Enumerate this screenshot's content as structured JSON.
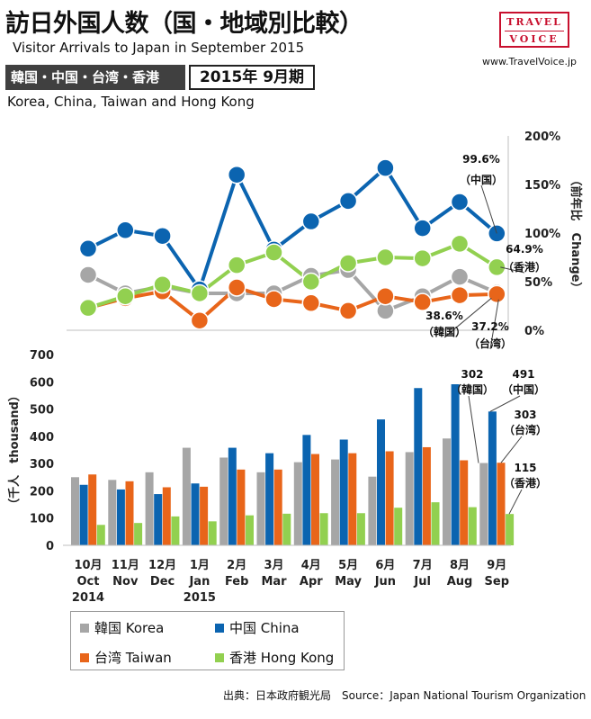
{
  "header": {
    "title": "訪日外国人数（国・地域別比較）",
    "subtitle": "Visitor Arrivals to Japan in September 2015",
    "region_label": "韓国・中国・台湾・香港",
    "period_label": "2015年 9月期",
    "region_en": "Korea, China, Taiwan and Hong Kong"
  },
  "brand": {
    "logo_line1": "TRAVEL",
    "logo_line2": "VOICE",
    "site": "www.TravelVoice.jp",
    "color": "#c8102e"
  },
  "legend": [
    {
      "label": "韓国 Korea",
      "color": "#a6a6a6"
    },
    {
      "label": "中国 China",
      "color": "#0b64b0"
    },
    {
      "label": "台湾 Taiwan",
      "color": "#e8651a"
    },
    {
      "label": "香港 Hong Kong",
      "color": "#92d050"
    }
  ],
  "source": "出典：日本政府観光局　Source：Japan  National Tourism  Organization",
  "chart_data": [
    {
      "type": "line",
      "y_label": "（前年比　Change）",
      "y_ticks": [
        "0%",
        "50%",
        "100%",
        "150%",
        "200%"
      ],
      "ylim": [
        0,
        200
      ],
      "grid": false,
      "series": [
        {
          "name": "韓国 Korea",
          "color": "#a6a6a6",
          "values": [
            57,
            38,
            45,
            38,
            38,
            38,
            56,
            62,
            20,
            35,
            55,
            38.6
          ]
        },
        {
          "name": "中国 China",
          "color": "#0b64b0",
          "values": [
            84,
            103,
            97,
            42,
            160,
            83,
            112,
            133,
            167,
            105,
            132,
            99.6
          ]
        },
        {
          "name": "台湾 Taiwan",
          "color": "#e8651a",
          "values": [
            23,
            33,
            40,
            10,
            44,
            32,
            28,
            20,
            35,
            29,
            36,
            37.2
          ]
        },
        {
          "name": "香港 Hong Kong",
          "color": "#92d050",
          "values": [
            23,
            35,
            47,
            38,
            67,
            80,
            50,
            69,
            75,
            74,
            89,
            64.9
          ]
        }
      ],
      "annotations": [
        {
          "series": "中国 China",
          "value": "99.6%",
          "label": "（中国）"
        },
        {
          "series": "香港 Hong Kong",
          "value": "64.9%",
          "label": "（香港）"
        },
        {
          "series": "韓国 Korea",
          "value": "38.6%",
          "label": "（韓国）"
        },
        {
          "series": "台湾 Taiwan",
          "value": "37.2%",
          "label": "（台湾）"
        }
      ]
    },
    {
      "type": "bar",
      "ylabel": "（千人　thousand）",
      "ylim": [
        0,
        700
      ],
      "y_ticks": [
        "0",
        "100",
        "200",
        "300",
        "400",
        "500",
        "600",
        "700"
      ],
      "grid": false,
      "categories": [
        [
          "10月",
          "Oct",
          "2014"
        ],
        [
          "11月",
          "Nov",
          ""
        ],
        [
          "12月",
          "Dec",
          ""
        ],
        [
          "1月",
          "Jan",
          "2015"
        ],
        [
          "2月",
          "Feb",
          ""
        ],
        [
          "3月",
          "Mar",
          ""
        ],
        [
          "4月",
          "Apr",
          ""
        ],
        [
          "5月",
          "May",
          ""
        ],
        [
          "6月",
          "Jun",
          ""
        ],
        [
          "7月",
          "Jul",
          ""
        ],
        [
          "8月",
          "Aug",
          ""
        ],
        [
          "9月",
          "Sep",
          ""
        ]
      ],
      "series": [
        {
          "name": "韓国 Korea",
          "color": "#a6a6a6",
          "values": [
            250,
            240,
            268,
            358,
            322,
            268,
            305,
            315,
            252,
            342,
            392,
            302
          ]
        },
        {
          "name": "中国 China",
          "color": "#0b64b0",
          "values": [
            222,
            205,
            188,
            227,
            358,
            338,
            405,
            388,
            462,
            577,
            591,
            491
          ]
        },
        {
          "name": "台湾 Taiwan",
          "color": "#e8651a",
          "values": [
            260,
            235,
            213,
            215,
            278,
            278,
            335,
            338,
            345,
            360,
            312,
            303
          ]
        },
        {
          "name": "香港 Hong Kong",
          "color": "#92d050",
          "values": [
            75,
            82,
            106,
            88,
            110,
            116,
            118,
            118,
            138,
            158,
            140,
            115
          ]
        }
      ],
      "annotations": [
        {
          "series": "韓国 Korea",
          "value": "302",
          "label": "（韓国）"
        },
        {
          "series": "中国 China",
          "value": "491",
          "label": "（中国）"
        },
        {
          "series": "台湾 Taiwan",
          "value": "303",
          "label": "（台湾）"
        },
        {
          "series": "香港 Hong Kong",
          "value": "115",
          "label": "（香港）"
        }
      ]
    }
  ]
}
